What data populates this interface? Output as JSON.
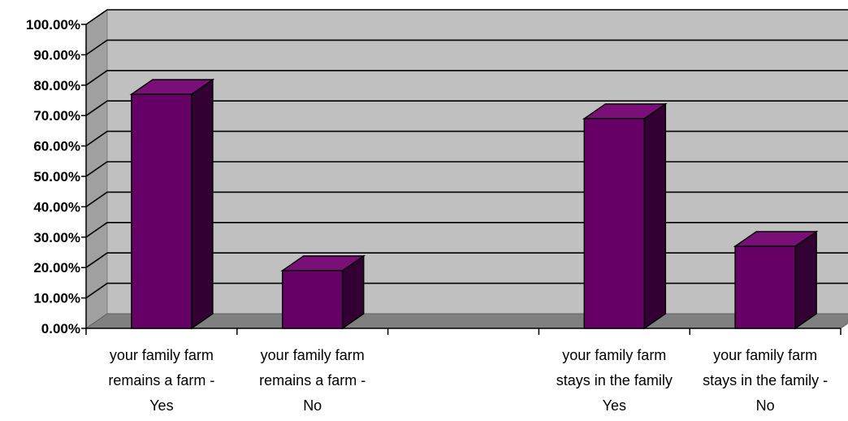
{
  "chart_data": {
    "type": "bar",
    "title": "",
    "xlabel": "",
    "ylabel": "",
    "ylim": [
      0,
      100
    ],
    "grid": true,
    "legend": "none",
    "categories": [
      [
        "your family farm",
        "remains a farm -",
        "Yes"
      ],
      [
        "your family farm",
        "remains a farm -",
        "No"
      ],
      [
        "",
        "",
        ""
      ],
      [
        "your family farm",
        "stays in the family",
        "Yes"
      ],
      [
        "your family farm",
        "stays in the family -",
        "No"
      ]
    ],
    "values": [
      77,
      19,
      null,
      69,
      27
    ],
    "y_tick_labels": [
      "0.00%",
      "10.00%",
      "20.00%",
      "30.00%",
      "40.00%",
      "50.00%",
      "60.00%",
      "70.00%",
      "80.00%",
      "90.00%",
      "100.00%"
    ],
    "colors": {
      "bar_front": "#660066",
      "bar_top": "#7a0f78",
      "bar_side": "#330033",
      "wall": "#c0c0c0",
      "wall_side": "#a0a0a0",
      "floor": "#808080",
      "grid": "#000000"
    }
  }
}
